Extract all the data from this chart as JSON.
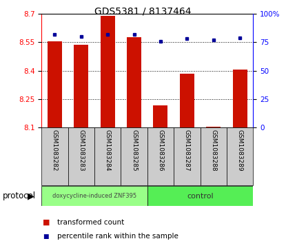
{
  "title": "GDS5381 / 8137464",
  "samples": [
    "GSM1083282",
    "GSM1083283",
    "GSM1083284",
    "GSM1083285",
    "GSM1083286",
    "GSM1083287",
    "GSM1083288",
    "GSM1083289"
  ],
  "transformed_count": [
    8.555,
    8.535,
    8.69,
    8.575,
    8.215,
    8.385,
    8.105,
    8.405
  ],
  "percentile_rank": [
    82,
    80,
    82,
    82,
    76,
    78,
    77,
    79
  ],
  "ylim_left": [
    8.1,
    8.7
  ],
  "ylim_right": [
    0,
    100
  ],
  "yticks_left": [
    8.1,
    8.25,
    8.4,
    8.55,
    8.7
  ],
  "yticks_right": [
    0,
    25,
    50,
    75,
    100
  ],
  "ytick_labels_left": [
    "8.1",
    "8.25",
    "8.4",
    "8.55",
    "8.7"
  ],
  "ytick_labels_right": [
    "0",
    "25",
    "50",
    "75",
    "100%"
  ],
  "bar_color": "#CC1100",
  "dot_color": "#000099",
  "group1_label": "doxycycline-induced ZNF395",
  "group1_samples": [
    0,
    1,
    2,
    3
  ],
  "group1_color": "#99FF88",
  "group2_label": "control",
  "group2_samples": [
    4,
    5,
    6,
    7
  ],
  "group2_color": "#55EE55",
  "protocol_label": "protocol",
  "legend_bar_label": "transformed count",
  "legend_dot_label": "percentile rank within the sample",
  "bar_width": 0.55,
  "base_value": 8.1,
  "cell_bg_color": "#cccccc",
  "title_fontsize": 10,
  "tick_fontsize": 7.5,
  "sample_fontsize": 6.5
}
